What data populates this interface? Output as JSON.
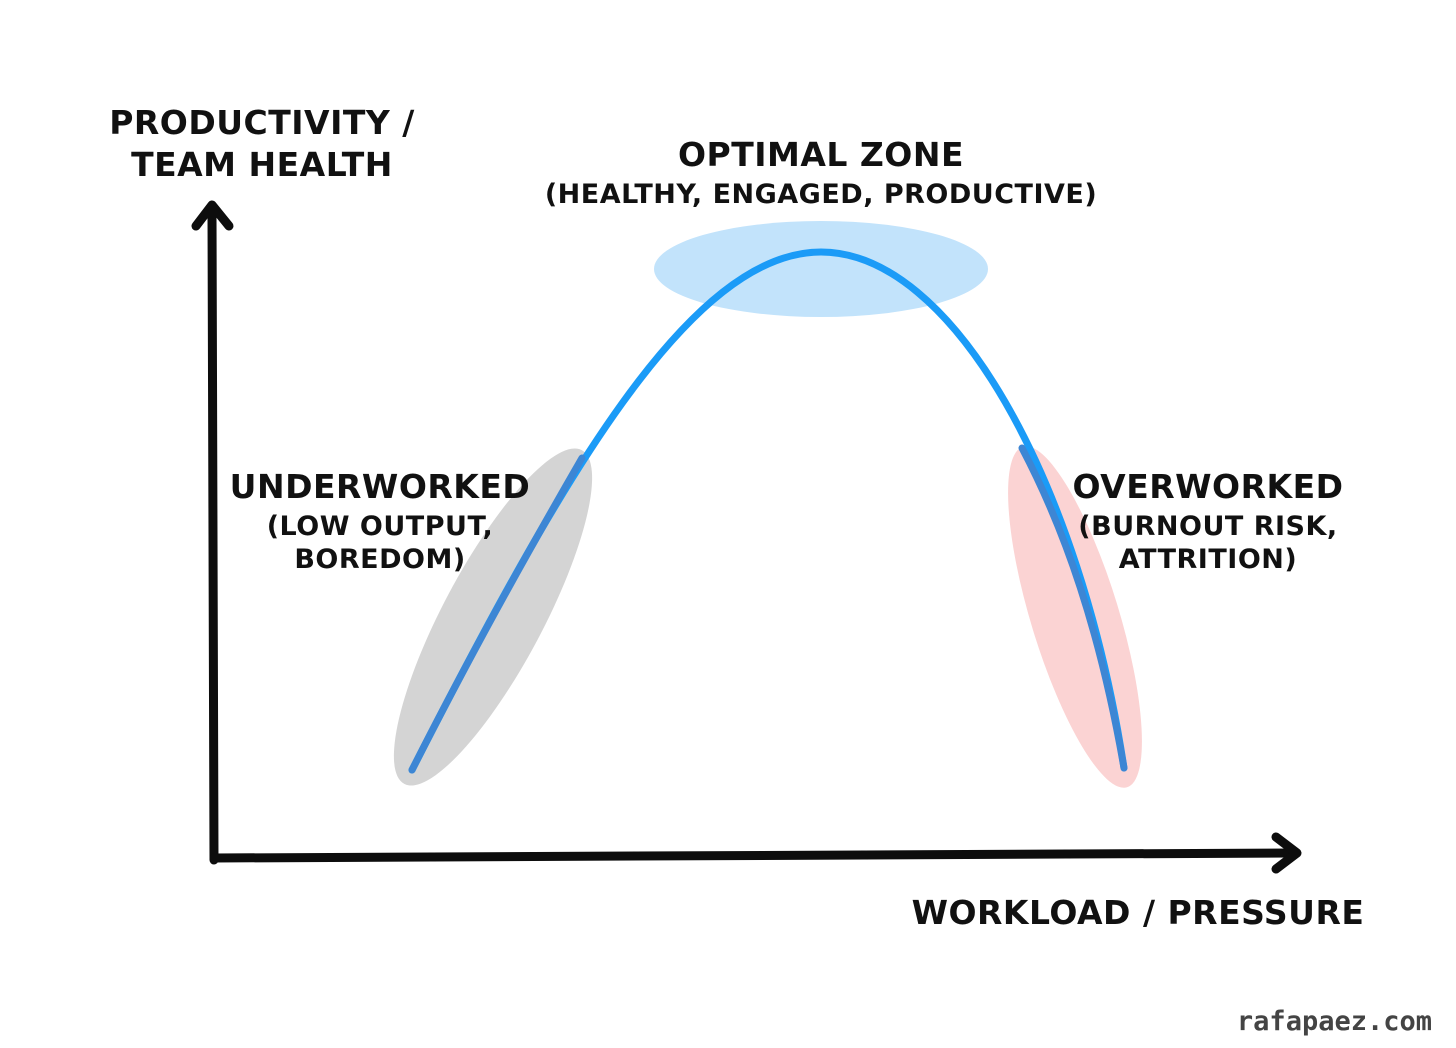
{
  "y_axis_label": [
    "PRODUCTIVITY /",
    "TEAM HEALTH"
  ],
  "x_axis_label": "WORKLOAD / PRESSURE",
  "zones": {
    "optimal": {
      "title": "OPTIMAL ZONE",
      "subtitle": "(HEALTHY, ENGAGED, PRODUCTIVE)",
      "color": "#c2e3fb"
    },
    "underworked": {
      "title": "UNDERWORKED",
      "lines": [
        "(LOW OUTPUT,",
        "BOREDOM)"
      ],
      "color": "#d4d4d4"
    },
    "overworked": {
      "title": "OVERWORKED",
      "lines": [
        "(BURNOUT RISK,",
        "ATTRITION)"
      ],
      "color": "#fbd3d3"
    }
  },
  "colors": {
    "curve_bright": "#1b9bf7",
    "curve_muted": "#3d86d4",
    "axis": "#0d0d0d"
  },
  "watermark": "rafapaez.com"
}
